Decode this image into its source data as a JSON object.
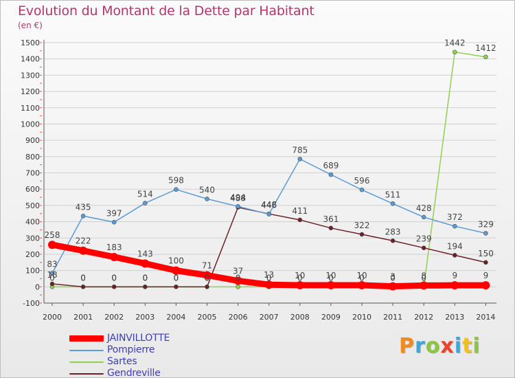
{
  "title": "Evolution du Montant de la Dette par Habitant",
  "unit_label": "(en €)",
  "logo_text": "Proxiti",
  "colors": {
    "title": "#b3366b",
    "legend_text": "#3e3eb1",
    "axis": "#555555",
    "grid": "#d0d0d0"
  },
  "chart_data": {
    "type": "line",
    "x": [
      "2000",
      "2001",
      "2002",
      "2003",
      "2004",
      "2005",
      "2006",
      "2007",
      "2008",
      "2009",
      "2010",
      "2011",
      "2012",
      "2013",
      "2014"
    ],
    "ylim": [
      -100,
      1500
    ],
    "yticks": [
      -100,
      0,
      100,
      200,
      300,
      400,
      500,
      600,
      700,
      800,
      900,
      1000,
      1100,
      1200,
      1300,
      1400,
      1500
    ],
    "grid": "horizontal",
    "legend_position": "bottom-left",
    "series": [
      {
        "name": "JAINVILLOTTE",
        "color": "#ff0000",
        "values": [
          258,
          222,
          183,
          143,
          100,
          71,
          37,
          13,
          10,
          10,
          10,
          3,
          8,
          9,
          9
        ]
      },
      {
        "name": "Pompierre",
        "color": "#5b9bd5",
        "values": [
          83,
          435,
          397,
          514,
          598,
          540,
          494,
          446,
          785,
          689,
          596,
          511,
          428,
          372,
          329
        ]
      },
      {
        "name": "Sartes",
        "color": "#8fd14f",
        "values": [
          0,
          0,
          0,
          0,
          0,
          0,
          0,
          0,
          0,
          0,
          0,
          0,
          0,
          1442,
          1412
        ]
      },
      {
        "name": "Gendreville",
        "color": "#6b1f26",
        "values": [
          18,
          0,
          0,
          0,
          0,
          0,
          488,
          448,
          411,
          361,
          322,
          283,
          239,
          194,
          150
        ]
      }
    ],
    "data_labels": {
      "JAINVILLOTTE": [
        "258",
        "222",
        "183",
        "143",
        "100",
        "71",
        "37",
        "13",
        "10",
        "10",
        "10",
        "3",
        "8",
        "9",
        "9"
      ],
      "Pompierre": [
        "83",
        "435",
        "397",
        "514",
        "598",
        "540",
        "494",
        "446",
        "785",
        "689",
        "596",
        "511",
        "428",
        "372",
        "329"
      ],
      "Sartes": [
        "0",
        "0",
        "0",
        "0",
        "0",
        "0",
        "0",
        "0",
        "0",
        "0",
        "0",
        "0",
        "0",
        "1442",
        "1412"
      ],
      "Gendreville": [
        "18",
        "0",
        "0",
        "0",
        "0",
        "0",
        "488",
        "448",
        "411",
        "361",
        "322",
        "283",
        "239",
        "194",
        "150"
      ]
    }
  }
}
